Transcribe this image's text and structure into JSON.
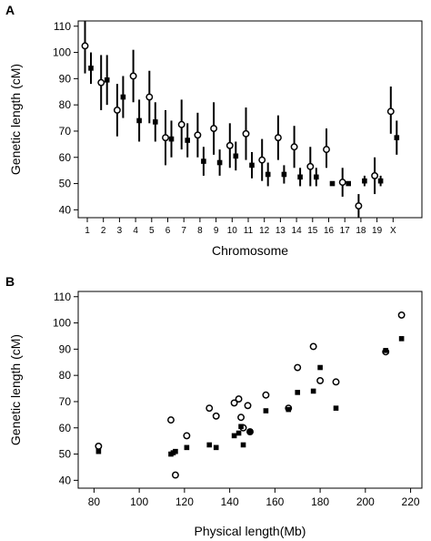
{
  "chart_data": [
    {
      "panel_label": "A",
      "type": "scatter",
      "subtype": "point-with-error-bars, paired per category",
      "xlabel": "Chromosome",
      "ylabel": "Genetic length (cM)",
      "ylim": [
        37,
        112
      ],
      "yticks": [
        40,
        50,
        60,
        70,
        80,
        90,
        100,
        110
      ],
      "categories": [
        "1",
        "2",
        "3",
        "4",
        "5",
        "6",
        "7",
        "8",
        "9",
        "10",
        "11",
        "12",
        "13",
        "14",
        "15",
        "16",
        "17",
        "18",
        "19",
        "X"
      ],
      "series": [
        {
          "marker": "open-circle",
          "values": [
            102.5,
            88.5,
            78,
            91,
            83,
            67.5,
            72.5,
            68.5,
            71,
            64.5,
            69,
            59,
            67.5,
            64,
            56.5,
            63,
            50.5,
            41.5,
            53,
            77.5
          ],
          "err_low": [
            92,
            78,
            68,
            81,
            73,
            57,
            63,
            60,
            61,
            56,
            59,
            51,
            59,
            56,
            49,
            56,
            45,
            37,
            46,
            69
          ],
          "err_high": [
            113,
            99,
            88,
            101,
            93,
            78,
            82,
            77,
            81,
            73,
            79,
            67,
            76,
            72,
            64,
            71,
            56,
            46,
            60,
            87
          ]
        },
        {
          "marker": "filled-square",
          "values": [
            94,
            89.5,
            83,
            74,
            73.5,
            67,
            66.5,
            58.5,
            58,
            60.5,
            57,
            53.5,
            53.5,
            52.5,
            52.5,
            50,
            50,
            51,
            51,
            67.5
          ],
          "err_low": [
            88,
            80,
            75,
            66,
            66,
            60,
            60,
            53,
            53,
            55,
            52,
            49,
            50,
            49,
            49,
            50,
            50,
            49,
            49,
            61
          ],
          "err_high": [
            100,
            99,
            91,
            82,
            81,
            74,
            73,
            64,
            63,
            66,
            62,
            58,
            57,
            56,
            56,
            50,
            50,
            53,
            53,
            74
          ]
        }
      ],
      "legend": "none",
      "grid": false
    },
    {
      "panel_label": "B",
      "type": "scatter",
      "xlabel": "Physical length(Mb)",
      "ylabel": "Genetic length (cM)",
      "xlim": [
        73,
        225
      ],
      "ylim": [
        37,
        112
      ],
      "xticks": [
        80,
        100,
        120,
        140,
        160,
        180,
        200,
        220
      ],
      "yticks": [
        40,
        50,
        60,
        70,
        80,
        90,
        100,
        110
      ],
      "series": [
        {
          "marker": "open-circle",
          "points": [
            [
              82,
              53
            ],
            [
              114,
              63
            ],
            [
              116,
              42
            ],
            [
              121,
              57
            ],
            [
              131,
              67.5
            ],
            [
              134,
              64.5
            ],
            [
              142,
              69.5
            ],
            [
              144,
              71
            ],
            [
              145,
              64
            ],
            [
              148,
              68.5
            ],
            [
              149,
              58.5
            ],
            [
              156,
              72.5
            ],
            [
              166,
              67.5
            ],
            [
              170,
              83
            ],
            [
              177,
              91
            ],
            [
              180,
              78
            ],
            [
              187,
              77.5
            ],
            [
              209,
              89
            ],
            [
              216,
              103
            ],
            [
              146,
              60
            ]
          ]
        },
        {
          "marker": "filled-square",
          "points": [
            [
              82,
              51
            ],
            [
              114,
              50
            ],
            [
              115,
              50.5
            ],
            [
              116,
              51
            ],
            [
              121,
              52.5
            ],
            [
              131,
              53.5
            ],
            [
              134,
              52.5
            ],
            [
              142,
              57
            ],
            [
              144,
              58
            ],
            [
              146,
              53.5
            ],
            [
              149,
              58.5
            ],
            [
              156,
              66.5
            ],
            [
              166,
              67
            ],
            [
              170,
              73.5
            ],
            [
              177,
              74
            ],
            [
              180,
              83
            ],
            [
              187,
              67.5
            ],
            [
              209,
              89.5
            ],
            [
              216,
              94
            ],
            [
              145,
              60.5
            ]
          ]
        }
      ],
      "legend": "none",
      "grid": false
    }
  ]
}
